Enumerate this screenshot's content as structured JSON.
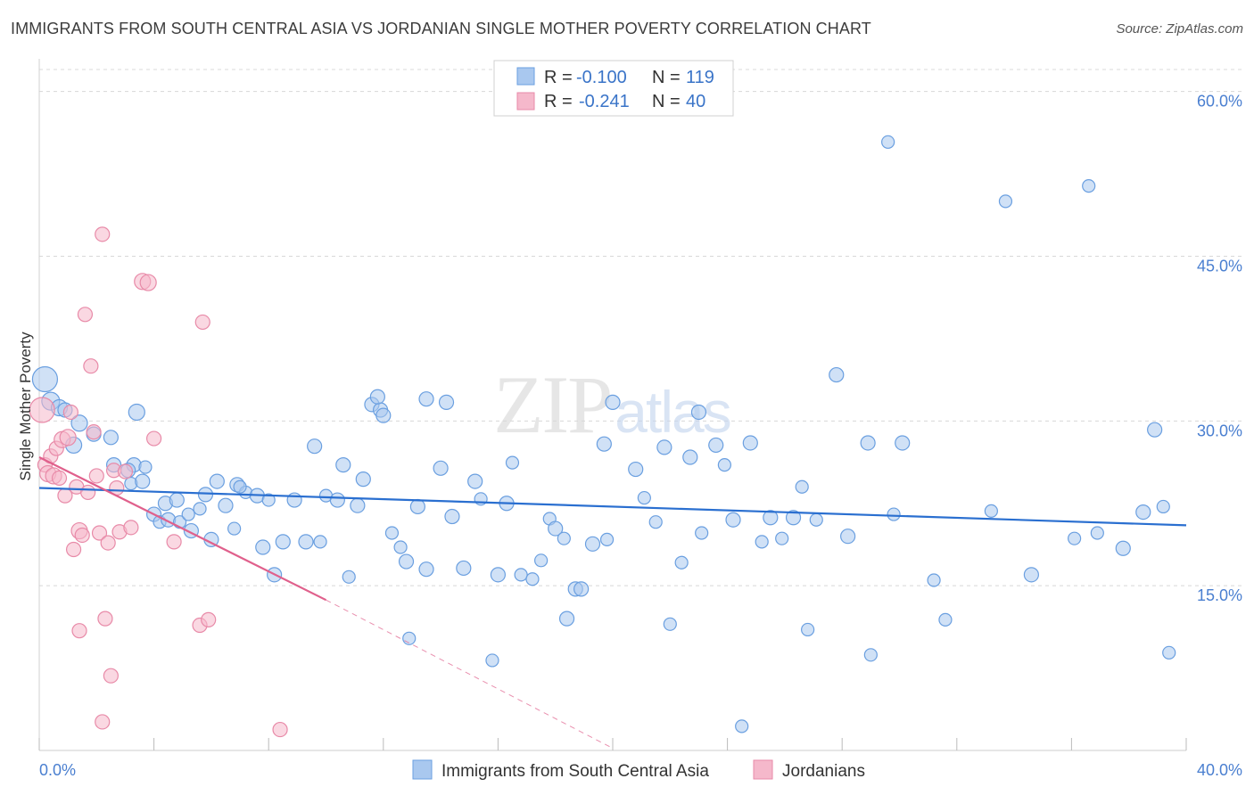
{
  "title": "IMMIGRANTS FROM SOUTH CENTRAL ASIA VS JORDANIAN SINGLE MOTHER POVERTY CORRELATION CHART",
  "source": "Source: ZipAtlas.com",
  "watermark": {
    "part1": "ZIP",
    "part2": "atlas"
  },
  "colors": {
    "blue_fill": "#a9c8ef",
    "blue_stroke": "#6a9fe0",
    "blue_line": "#2a6fd0",
    "pink_fill": "#f5b8cb",
    "pink_stroke": "#e88aa8",
    "pink_line": "#e0608c",
    "grid": "#d8d8d8",
    "axis_text": "#4a7fd0"
  },
  "legend": {
    "rows": [
      {
        "r_label": "R = ",
        "r_value": "-0.100",
        "n_label": "N = ",
        "n_value": "119"
      },
      {
        "r_label": "R = ",
        "r_value": "-0.241",
        "n_label": "N = ",
        "n_value": "40"
      }
    ]
  },
  "bottom_legend": [
    "Immigrants from South Central Asia",
    "Jordanians"
  ],
  "chart_data": {
    "type": "scatter",
    "title": "IMMIGRANTS FROM SOUTH CENTRAL ASIA VS JORDANIAN SINGLE MOTHER POVERTY CORRELATION CHART",
    "xlabel": "",
    "ylabel": "Single Mother Poverty",
    "xlim": [
      0,
      40
    ],
    "ylim": [
      0,
      62
    ],
    "x_tick_labels": [
      "0.0%",
      "40.0%"
    ],
    "y_ticks": [
      15,
      30,
      45,
      60
    ],
    "y_tick_labels": [
      "15.0%",
      "30.0%",
      "45.0%",
      "60.0%"
    ],
    "grid": true,
    "legend_position": "top-center",
    "series": [
      {
        "name": "Immigrants from South Central Asia",
        "r": -0.1,
        "n": 119,
        "trend": {
          "x": [
            0,
            40
          ],
          "y": [
            23.9,
            20.5
          ]
        },
        "points": [
          [
            0.2,
            33.8,
            14
          ],
          [
            0.4,
            31.8,
            10
          ],
          [
            0.7,
            31.2,
            9
          ],
          [
            0.9,
            31.0,
            8
          ],
          [
            1.4,
            29.8,
            9
          ],
          [
            1.2,
            27.8,
            9
          ],
          [
            1.9,
            28.8,
            8
          ],
          [
            2.5,
            28.5,
            8
          ],
          [
            2.6,
            26.0,
            8
          ],
          [
            3.3,
            26.0,
            8
          ],
          [
            3.1,
            25.5,
            8
          ],
          [
            3.2,
            24.3,
            7
          ],
          [
            3.6,
            24.5,
            8
          ],
          [
            3.4,
            30.8,
            9
          ],
          [
            3.7,
            25.8,
            7
          ],
          [
            4.0,
            21.5,
            8
          ],
          [
            4.2,
            20.8,
            7
          ],
          [
            4.5,
            21.0,
            8
          ],
          [
            4.4,
            22.5,
            8
          ],
          [
            4.8,
            22.8,
            8
          ],
          [
            4.9,
            20.8,
            7
          ],
          [
            5.2,
            21.5,
            7
          ],
          [
            5.3,
            20.0,
            8
          ],
          [
            5.6,
            22.0,
            7
          ],
          [
            5.8,
            23.3,
            8
          ],
          [
            6.0,
            19.2,
            8
          ],
          [
            6.2,
            24.5,
            8
          ],
          [
            6.5,
            22.3,
            8
          ],
          [
            6.8,
            20.2,
            7
          ],
          [
            6.9,
            24.2,
            8
          ],
          [
            7.2,
            23.5,
            7
          ],
          [
            7.0,
            24.0,
            7
          ],
          [
            7.6,
            23.2,
            8
          ],
          [
            7.8,
            18.5,
            8
          ],
          [
            8.2,
            16.0,
            8
          ],
          [
            8.5,
            19.0,
            8
          ],
          [
            8.0,
            22.8,
            7
          ],
          [
            8.9,
            22.8,
            8
          ],
          [
            9.3,
            19.0,
            8
          ],
          [
            9.8,
            19.0,
            7
          ],
          [
            9.6,
            27.7,
            8
          ],
          [
            10.0,
            23.2,
            7
          ],
          [
            10.4,
            22.8,
            8
          ],
          [
            10.6,
            26.0,
            8
          ],
          [
            10.8,
            15.8,
            7
          ],
          [
            11.1,
            22.3,
            8
          ],
          [
            11.3,
            24.7,
            8
          ],
          [
            11.6,
            31.5,
            8
          ],
          [
            11.9,
            31.0,
            8
          ],
          [
            11.8,
            32.2,
            8
          ],
          [
            12.0,
            30.5,
            8
          ],
          [
            12.3,
            19.8,
            7
          ],
          [
            12.6,
            18.5,
            7
          ],
          [
            12.8,
            17.2,
            8
          ],
          [
            12.9,
            10.2,
            7
          ],
          [
            13.2,
            22.2,
            8
          ],
          [
            13.5,
            16.5,
            8
          ],
          [
            13.5,
            32.0,
            8
          ],
          [
            14.2,
            31.7,
            8
          ],
          [
            14.0,
            25.7,
            8
          ],
          [
            14.4,
            21.3,
            8
          ],
          [
            14.8,
            16.6,
            8
          ],
          [
            15.2,
            24.5,
            8
          ],
          [
            15.4,
            22.9,
            7
          ],
          [
            15.8,
            8.2,
            7
          ],
          [
            16.0,
            16.0,
            8
          ],
          [
            16.3,
            22.5,
            8
          ],
          [
            16.5,
            26.2,
            7
          ],
          [
            16.8,
            16.0,
            7
          ],
          [
            17.2,
            15.6,
            7
          ],
          [
            17.5,
            17.3,
            7
          ],
          [
            17.8,
            21.1,
            7
          ],
          [
            18.0,
            20.2,
            8
          ],
          [
            18.3,
            19.3,
            7
          ],
          [
            18.4,
            12.0,
            8
          ],
          [
            18.7,
            14.7,
            8
          ],
          [
            18.9,
            14.7,
            8
          ],
          [
            19.3,
            18.8,
            8
          ],
          [
            19.7,
            27.9,
            8
          ],
          [
            19.8,
            19.2,
            7
          ],
          [
            20.0,
            31.7,
            8
          ],
          [
            20.8,
            25.6,
            8
          ],
          [
            21.1,
            23.0,
            7
          ],
          [
            21.5,
            20.8,
            7
          ],
          [
            21.8,
            27.6,
            8
          ],
          [
            22.0,
            11.5,
            7
          ],
          [
            22.4,
            17.1,
            7
          ],
          [
            22.7,
            26.7,
            8
          ],
          [
            23.0,
            30.8,
            8
          ],
          [
            23.1,
            19.8,
            7
          ],
          [
            23.6,
            27.8,
            8
          ],
          [
            23.9,
            26.0,
            7
          ],
          [
            24.2,
            21.0,
            8
          ],
          [
            24.5,
            2.2,
            7
          ],
          [
            24.8,
            28.0,
            8
          ],
          [
            25.2,
            19.0,
            7
          ],
          [
            25.5,
            21.2,
            8
          ],
          [
            25.9,
            19.3,
            7
          ],
          [
            26.3,
            21.2,
            8
          ],
          [
            26.6,
            24.0,
            7
          ],
          [
            26.8,
            11.0,
            7
          ],
          [
            27.1,
            21.0,
            7
          ],
          [
            27.8,
            34.2,
            8
          ],
          [
            28.2,
            19.5,
            8
          ],
          [
            28.9,
            28.0,
            8
          ],
          [
            29.0,
            8.7,
            7
          ],
          [
            29.6,
            55.4,
            7
          ],
          [
            29.8,
            21.5,
            7
          ],
          [
            30.1,
            28.0,
            8
          ],
          [
            31.2,
            15.5,
            7
          ],
          [
            31.6,
            11.9,
            7
          ],
          [
            33.2,
            21.8,
            7
          ],
          [
            33.7,
            50.0,
            7
          ],
          [
            34.6,
            16.0,
            8
          ],
          [
            36.1,
            19.3,
            7
          ],
          [
            36.6,
            51.4,
            7
          ],
          [
            36.9,
            19.8,
            7
          ],
          [
            37.8,
            18.4,
            8
          ],
          [
            38.5,
            21.7,
            8
          ],
          [
            38.9,
            29.2,
            8
          ],
          [
            39.2,
            22.2,
            7
          ],
          [
            39.4,
            8.9,
            7
          ]
        ]
      },
      {
        "name": "Jordanians",
        "r": -0.241,
        "n": 40,
        "trend": {
          "x": [
            0,
            10
          ],
          "y": [
            26.7,
            13.7
          ]
        },
        "trend_dashed": {
          "x": [
            10,
            20
          ],
          "y": [
            13.7,
            0.2
          ]
        },
        "points": [
          [
            0.1,
            31.0,
            14
          ],
          [
            0.2,
            26.0,
            8
          ],
          [
            0.3,
            25.2,
            9
          ],
          [
            0.4,
            26.8,
            8
          ],
          [
            0.5,
            25.0,
            9
          ],
          [
            0.6,
            27.5,
            8
          ],
          [
            0.7,
            24.8,
            8
          ],
          [
            0.8,
            28.3,
            9
          ],
          [
            0.9,
            23.2,
            8
          ],
          [
            1.0,
            28.5,
            9
          ],
          [
            1.1,
            30.8,
            8
          ],
          [
            1.2,
            18.3,
            8
          ],
          [
            1.3,
            24.0,
            8
          ],
          [
            1.4,
            20.0,
            9
          ],
          [
            1.4,
            10.9,
            8
          ],
          [
            1.5,
            19.6,
            8
          ],
          [
            1.6,
            39.7,
            8
          ],
          [
            1.7,
            23.5,
            8
          ],
          [
            1.8,
            35.0,
            8
          ],
          [
            1.9,
            29.0,
            8
          ],
          [
            2.0,
            25.0,
            8
          ],
          [
            2.1,
            19.8,
            8
          ],
          [
            2.2,
            2.6,
            8
          ],
          [
            2.2,
            47.0,
            8
          ],
          [
            2.3,
            12.0,
            8
          ],
          [
            2.4,
            18.9,
            8
          ],
          [
            2.5,
            6.8,
            8
          ],
          [
            2.6,
            25.5,
            8
          ],
          [
            2.7,
            23.9,
            8
          ],
          [
            2.8,
            19.9,
            8
          ],
          [
            3.0,
            25.4,
            8
          ],
          [
            3.2,
            20.3,
            8
          ],
          [
            3.6,
            42.7,
            9
          ],
          [
            3.8,
            42.6,
            9
          ],
          [
            4.0,
            28.4,
            8
          ],
          [
            4.7,
            19.0,
            8
          ],
          [
            5.6,
            11.4,
            8
          ],
          [
            5.7,
            39.0,
            8
          ],
          [
            5.9,
            11.9,
            8
          ],
          [
            8.4,
            1.9,
            8
          ]
        ]
      }
    ]
  }
}
